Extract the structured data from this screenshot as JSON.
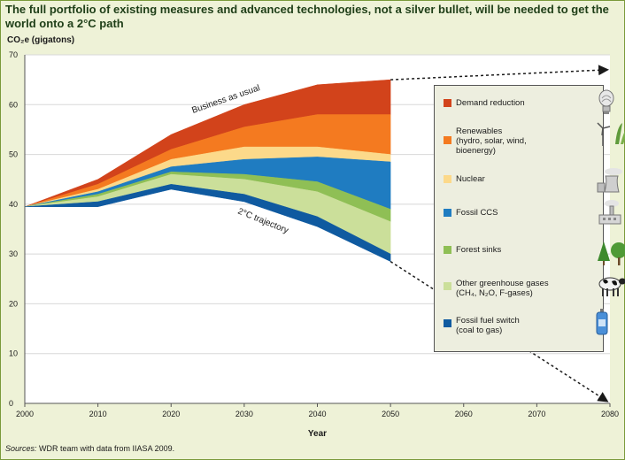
{
  "title": "The full portfolio of existing measures and advanced technologies, not a silver bullet, will be needed to get the world onto a 2°C path",
  "unit_label": "CO₂e (gigatons)",
  "source_label": "Sources:",
  "source_text": " WDR team with data from IIASA 2009.",
  "chart_data": {
    "type": "area",
    "xlabel": "Year",
    "ylabel": "CO₂e (gigatons)",
    "xlim": [
      2000,
      2080
    ],
    "ylim": [
      0,
      70
    ],
    "x_ticks": [
      2000,
      2010,
      2020,
      2030,
      2040,
      2050,
      2060,
      2070,
      2080
    ],
    "y_ticks": [
      0,
      10,
      20,
      30,
      40,
      50,
      60,
      70
    ],
    "x": [
      2000,
      2010,
      2020,
      2030,
      2040,
      2050
    ],
    "boundaries": {
      "business_as_usual": [
        39.5,
        45,
        54,
        60,
        64,
        65
      ],
      "after_demand_reduction": [
        39.5,
        44,
        51,
        55.5,
        58,
        58
      ],
      "after_renewables": [
        39.5,
        43,
        49,
        51.5,
        51.5,
        50
      ],
      "after_nuclear": [
        39.5,
        42.5,
        47.5,
        49,
        49.5,
        48.5
      ],
      "after_fossil_ccs": [
        39.5,
        42,
        46.5,
        46,
        44.5,
        39
      ],
      "after_forest_sinks": [
        39.5,
        41.5,
        46,
        45,
        42.5,
        36.5
      ],
      "after_other_ghg": [
        39.5,
        40.5,
        44,
        42,
        37.5,
        30
      ],
      "two_degree_trajectory": [
        39.5,
        39.5,
        43,
        40.5,
        35.5,
        28.5
      ]
    },
    "series": [
      {
        "name": "Demand reduction",
        "color": "#d2431b"
      },
      {
        "name": "Renewables (hydro, solar, wind, bioenergy)",
        "color": "#f47a20"
      },
      {
        "name": "Nuclear",
        "color": "#fcd98a"
      },
      {
        "name": "Fossil CCS",
        "color": "#1f7cc1"
      },
      {
        "name": "Forest sinks",
        "color": "#8fbf55"
      },
      {
        "name": "Other greenhouse gases (CH₄, N₂O, F-gases)",
        "color": "#cbdf9a"
      },
      {
        "name": "Fossil fuel switch (coal to gas)",
        "color": "#0f5aa0"
      }
    ],
    "extrapolation": {
      "business_as_usual": {
        "from": [
          2050,
          65
        ],
        "to": [
          2080,
          67
        ]
      },
      "two_degree": {
        "from": [
          2050,
          28.5
        ],
        "to": [
          2080,
          0
        ]
      }
    },
    "annotations": [
      "Business as usual",
      "2°C trajectory"
    ]
  },
  "legend": [
    {
      "lines": [
        "Demand reduction"
      ],
      "color": "#d2431b",
      "icon": "light-bulb-icon"
    },
    {
      "lines": [
        "Renewables",
        "(hydro, solar, wind,",
        "bioenergy)"
      ],
      "color": "#f47a20",
      "icon": "wind-solar-crop-icon"
    },
    {
      "lines": [
        "Nuclear"
      ],
      "color": "#fcd98a",
      "icon": "cooling-tower-icon"
    },
    {
      "lines": [
        "Fossil CCS"
      ],
      "color": "#1f7cc1",
      "icon": "factory-icon"
    },
    {
      "lines": [
        "Forest sinks"
      ],
      "color": "#8fbf55",
      "icon": "trees-icon"
    },
    {
      "lines": [
        "Other greenhouse gases",
        "(CH₄, N₂O, F-gases)"
      ],
      "color": "#cbdf9a",
      "icon": "cow-icon"
    },
    {
      "lines": [
        "Fossil fuel switch",
        "(coal to gas)"
      ],
      "color": "#0f5aa0",
      "icon": "gas-canister-icon"
    }
  ]
}
